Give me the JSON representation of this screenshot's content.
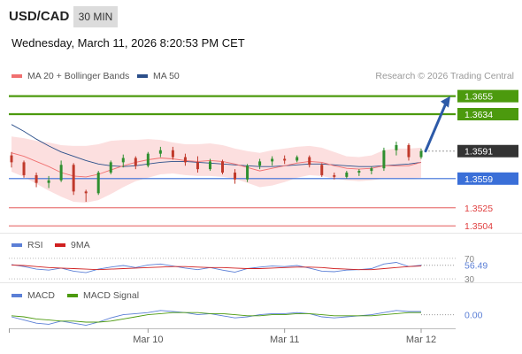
{
  "header": {
    "symbol": "USD/CAD",
    "interval": "30 MIN",
    "datetime": "Wednesday, March 11, 2026 8:20:53 PM CET"
  },
  "legend": {
    "ma20_label": "MA 20 + Bollinger Bands",
    "ma50_label": "MA 50",
    "credit": "Research © 2026 Trading Central"
  },
  "colors": {
    "ma20": "#f07070",
    "ma50": "#2b4f8a",
    "band": "#fcd9d9",
    "resistance": "#4c9a0e",
    "support": "#3a6fd8",
    "target": "#e04040",
    "arrow": "#2d5aa8",
    "up_candle": "#2f8f2f",
    "down_candle": "#c0392b",
    "rsi": "#5b7fd6",
    "rsi_ma": "#d02020",
    "macd": "#5b7fd6",
    "macd_signal": "#4c9a0e",
    "last_price_bg": "#333333"
  },
  "chart_data": [
    {
      "type": "candlestick",
      "ylim": [
        1.3497,
        1.3668
      ],
      "last_price": 1.3591,
      "levels": [
        {
          "kind": "resistance",
          "value": 1.3655,
          "label": "1.3655"
        },
        {
          "kind": "resistance",
          "value": 1.3634,
          "label": "1.3634"
        },
        {
          "kind": "last",
          "value": 1.3591,
          "label": "1.3591"
        },
        {
          "kind": "pivot",
          "value": 1.3559,
          "label": "1.3559"
        },
        {
          "kind": "support",
          "value": 1.3525,
          "label": "1.3525"
        },
        {
          "kind": "support",
          "value": 1.3504,
          "label": "1.3504"
        }
      ],
      "projection": {
        "from": 1.3591,
        "to": 1.3655
      },
      "series": [
        {
          "name": "MA 20",
          "values": [
            1.3589,
            1.3585,
            1.3579,
            1.3573,
            1.3566,
            1.3562,
            1.3561,
            1.3564,
            1.3569,
            1.3574,
            1.3578,
            1.3581,
            1.3583,
            1.3582,
            1.358,
            1.3579,
            1.358,
            1.3579,
            1.3576,
            1.3572,
            1.3568,
            1.3571,
            1.3574,
            1.3577,
            1.3579,
            1.3578,
            1.3574,
            1.3571,
            1.357,
            1.3571,
            1.3574,
            1.3574,
            1.3574,
            1.3578
          ]
        },
        {
          "name": "MA 50",
          "values": [
            1.3622,
            1.3614,
            1.3605,
            1.3597,
            1.359,
            1.3585,
            1.358,
            1.3576,
            1.3574,
            1.3573,
            1.3574,
            1.3576,
            1.3578,
            1.3579,
            1.3579,
            1.3578,
            1.3577,
            1.3576,
            1.3575,
            1.3574,
            1.3573,
            1.3573,
            1.3574,
            1.3575,
            1.3576,
            1.3576,
            1.3575,
            1.3574,
            1.3573,
            1.3573,
            1.3574,
            1.3575,
            1.3576,
            1.3578
          ]
        },
        {
          "name": "Bollinger Upper",
          "values": [
            1.3608,
            1.3606,
            1.3603,
            1.3601,
            1.3598,
            1.3597,
            1.3597,
            1.3599,
            1.3603,
            1.3604,
            1.3604,
            1.3605,
            1.3604,
            1.3601,
            1.3599,
            1.3599,
            1.36,
            1.3598,
            1.3594,
            1.3591,
            1.3589,
            1.3592,
            1.3594,
            1.3596,
            1.3597,
            1.3595,
            1.359,
            1.3585,
            1.3584,
            1.3586,
            1.3592,
            1.3594,
            1.3594,
            1.3595
          ]
        },
        {
          "name": "Bollinger Lower",
          "values": [
            1.3567,
            1.3561,
            1.3553,
            1.3545,
            1.3538,
            1.3532,
            1.3531,
            1.3534,
            1.3541,
            1.3549,
            1.3556,
            1.356,
            1.3564,
            1.3565,
            1.3563,
            1.3562,
            1.3562,
            1.3561,
            1.3559,
            1.3554,
            1.3549,
            1.3551,
            1.3555,
            1.356,
            1.3563,
            1.3562,
            1.3559,
            1.3557,
            1.3556,
            1.3557,
            1.3559,
            1.3559,
            1.3559,
            1.356
          ]
        }
      ],
      "candles": [
        {
          "o": 1.3586,
          "h": 1.359,
          "l": 1.3572,
          "c": 1.3578
        },
        {
          "o": 1.3578,
          "h": 1.358,
          "l": 1.356,
          "c": 1.3563
        },
        {
          "o": 1.3563,
          "h": 1.3566,
          "l": 1.3549,
          "c": 1.3554
        },
        {
          "o": 1.3554,
          "h": 1.3562,
          "l": 1.3548,
          "c": 1.3557
        },
        {
          "o": 1.3557,
          "h": 1.358,
          "l": 1.3555,
          "c": 1.3575
        },
        {
          "o": 1.3575,
          "h": 1.3577,
          "l": 1.354,
          "c": 1.3544
        },
        {
          "o": 1.3544,
          "h": 1.3546,
          "l": 1.3532,
          "c": 1.3542
        },
        {
          "o": 1.3542,
          "h": 1.3568,
          "l": 1.354,
          "c": 1.3566
        },
        {
          "o": 1.3566,
          "h": 1.358,
          "l": 1.3564,
          "c": 1.3578
        },
        {
          "o": 1.3578,
          "h": 1.3587,
          "l": 1.3572,
          "c": 1.3583
        },
        {
          "o": 1.3583,
          "h": 1.3585,
          "l": 1.357,
          "c": 1.3574
        },
        {
          "o": 1.3574,
          "h": 1.359,
          "l": 1.3572,
          "c": 1.3588
        },
        {
          "o": 1.3588,
          "h": 1.3596,
          "l": 1.3584,
          "c": 1.3592
        },
        {
          "o": 1.3592,
          "h": 1.3596,
          "l": 1.3581,
          "c": 1.3584
        },
        {
          "o": 1.3584,
          "h": 1.3588,
          "l": 1.3574,
          "c": 1.3578
        },
        {
          "o": 1.3578,
          "h": 1.3585,
          "l": 1.3566,
          "c": 1.357
        },
        {
          "o": 1.357,
          "h": 1.3582,
          "l": 1.3568,
          "c": 1.3579
        },
        {
          "o": 1.3579,
          "h": 1.3581,
          "l": 1.3564,
          "c": 1.3566
        },
        {
          "o": 1.3566,
          "h": 1.357,
          "l": 1.3553,
          "c": 1.3558
        },
        {
          "o": 1.3558,
          "h": 1.3576,
          "l": 1.3555,
          "c": 1.3574
        },
        {
          "o": 1.3574,
          "h": 1.3582,
          "l": 1.357,
          "c": 1.3579
        },
        {
          "o": 1.3579,
          "h": 1.3585,
          "l": 1.3574,
          "c": 1.3582
        },
        {
          "o": 1.3582,
          "h": 1.3586,
          "l": 1.3576,
          "c": 1.358
        },
        {
          "o": 1.358,
          "h": 1.3586,
          "l": 1.3578,
          "c": 1.3584
        },
        {
          "o": 1.3584,
          "h": 1.3586,
          "l": 1.3572,
          "c": 1.3575
        },
        {
          "o": 1.3575,
          "h": 1.3577,
          "l": 1.3561,
          "c": 1.3563
        },
        {
          "o": 1.3563,
          "h": 1.3566,
          "l": 1.3558,
          "c": 1.3561
        },
        {
          "o": 1.3561,
          "h": 1.3568,
          "l": 1.3559,
          "c": 1.3566
        },
        {
          "o": 1.3566,
          "h": 1.357,
          "l": 1.3562,
          "c": 1.3568
        },
        {
          "o": 1.3568,
          "h": 1.3573,
          "l": 1.3564,
          "c": 1.3571
        },
        {
          "o": 1.3571,
          "h": 1.3595,
          "l": 1.3568,
          "c": 1.3592
        },
        {
          "o": 1.3592,
          "h": 1.3602,
          "l": 1.3586,
          "c": 1.3598
        },
        {
          "o": 1.3598,
          "h": 1.36,
          "l": 1.358,
          "c": 1.3584
        },
        {
          "o": 1.3584,
          "h": 1.3594,
          "l": 1.3582,
          "c": 1.3591
        }
      ]
    },
    {
      "type": "line",
      "panel": "RSI",
      "labels": {
        "rsi": "RSI",
        "ma": "9MA"
      },
      "ticks": [
        "70",
        "30"
      ],
      "value_label": "56.49",
      "ylim": [
        25,
        75
      ],
      "series": [
        {
          "name": "RSI",
          "values": [
            58,
            54,
            49,
            47,
            51,
            45,
            42,
            49,
            53,
            56,
            52,
            57,
            59,
            55,
            51,
            48,
            52,
            47,
            43,
            50,
            53,
            55,
            54,
            56,
            51,
            45,
            44,
            47,
            48,
            50,
            59,
            62,
            54,
            56.49
          ]
        },
        {
          "name": "9MA",
          "values": [
            57,
            56,
            54,
            52,
            51,
            50,
            49,
            48,
            49,
            50,
            51,
            52,
            53,
            54,
            54,
            53,
            52,
            52,
            51,
            50,
            50,
            51,
            52,
            53,
            53,
            52,
            50,
            49,
            48,
            48,
            50,
            52,
            54,
            55
          ]
        }
      ]
    },
    {
      "type": "line",
      "panel": "MACD",
      "labels": {
        "macd": "MACD",
        "signal": "MACD Signal"
      },
      "value_label": "0.00",
      "ylim": [
        -0.0012,
        0.0008
      ],
      "series": [
        {
          "name": "MACD",
          "values": [
            -0.0002,
            -0.0005,
            -0.0008,
            -0.0009,
            -0.0006,
            -0.0008,
            -0.001,
            -0.0007,
            -0.0003,
            0.0,
            0.0001,
            0.0002,
            0.0004,
            0.0003,
            0.0002,
            0.0,
            0.0001,
            -0.0001,
            -0.0003,
            -0.0002,
            0.0,
            0.0001,
            0.0001,
            0.0002,
            0.0001,
            -0.0002,
            -0.0003,
            -0.0002,
            -0.0001,
            0.0,
            0.0002,
            0.0004,
            0.0003,
            0.0003
          ]
        },
        {
          "name": "MACD Signal",
          "values": [
            -0.0001,
            -0.0002,
            -0.0004,
            -0.0005,
            -0.0006,
            -0.0006,
            -0.0007,
            -0.0007,
            -0.0006,
            -0.0004,
            -0.0002,
            0.0,
            0.0001,
            0.0002,
            0.0002,
            0.0002,
            0.0001,
            0.0001,
            0.0,
            -0.0001,
            -0.0001,
            0.0,
            0.0,
            0.0001,
            0.0001,
            0.0,
            -0.0001,
            -0.0001,
            -0.0001,
            -0.0001,
            0.0,
            0.0001,
            0.0002,
            0.0002
          ]
        }
      ]
    }
  ],
  "x_axis": {
    "ticks": [
      {
        "label": "Mar 10",
        "index": 11
      },
      {
        "label": "Mar 11",
        "index": 22
      },
      {
        "label": "Mar 12",
        "index": 33
      }
    ]
  }
}
